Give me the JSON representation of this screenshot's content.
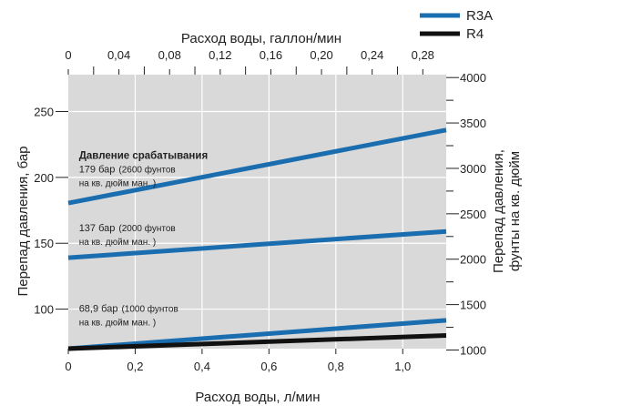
{
  "chart_data": {
    "type": "line",
    "x": [
      0,
      1.13
    ],
    "xlim": [
      0,
      1.13
    ],
    "ylim": [
      70,
      278
    ],
    "xlabel": "Расход воды, л/мин",
    "ylabel": "Перепад давления, бар",
    "x_ticks": [
      0,
      0.2,
      0.4,
      0.6,
      0.8,
      1.0
    ],
    "x_tick_labels": [
      "0",
      "0,2",
      "0,4",
      "0,6",
      "0,8",
      "1,0"
    ],
    "y_ticks": [
      100,
      150,
      200,
      250
    ],
    "y_tick_labels": [
      "100",
      "150",
      "200",
      "250"
    ],
    "top_axis": {
      "label": "Расход воды, галлон/мин",
      "ticks": [
        0,
        0.04,
        0.08,
        0.12,
        0.16,
        0.2,
        0.24,
        0.28
      ],
      "tick_labels": [
        "0",
        "0,04",
        "0,08",
        "0,12",
        "0,16",
        "0,20",
        "0,24",
        "0,28"
      ],
      "minor_ticks": [
        0.02,
        0.06,
        0.1,
        0.14,
        0.18,
        0.22,
        0.26
      ],
      "lim": [
        0,
        0.2985
      ]
    },
    "right_axis": {
      "label_lines": [
        "Перепад давления,",
        "фунты на кв. дюйм"
      ],
      "ticks": [
        1000,
        1500,
        2000,
        2500,
        3000,
        3500,
        4000
      ],
      "tick_labels": [
        "1000",
        "1500",
        "2000",
        "2500",
        "3000",
        "3500",
        "4000"
      ],
      "minor_ticks": [
        1250,
        1750,
        2250,
        2750,
        3250,
        3750
      ],
      "lim": [
        1015,
        4032
      ]
    },
    "grid": true,
    "legend": {
      "placement": "top-right",
      "entries": [
        {
          "name": "R3A",
          "color": "#1a6eb0"
        },
        {
          "name": "R4",
          "color": "#111111"
        }
      ]
    },
    "series": [
      {
        "legend": "R3A",
        "color": "#1a6eb0",
        "values": [
          180.5,
          236
        ]
      },
      {
        "legend": "R3A",
        "color": "#1a6eb0",
        "values": [
          139,
          159
        ]
      },
      {
        "legend": "R3A",
        "color": "#1a6eb0",
        "values": [
          70,
          91.5
        ]
      },
      {
        "legend": "R4",
        "color": "#111111",
        "values": [
          70,
          80
        ]
      }
    ],
    "annotations": [
      {
        "lines": [
          {
            "text": "Давление срабатывания",
            "style": "bold"
          },
          {
            "text": "179 бар",
            "style": "big",
            "suffix": "(2600 фунтов"
          },
          {
            "text": "на кв. дюйм ман. )",
            "style": "small"
          }
        ],
        "x": 0.04,
        "y": 214
      },
      {
        "lines": [
          {
            "text": "137 бар",
            "style": "big",
            "suffix": "(2000 фунтов"
          },
          {
            "text": "на кв. дюйм ман. )",
            "style": "small"
          }
        ],
        "x": 0.04,
        "y": 159
      },
      {
        "lines": [
          {
            "text": "68,9 бар",
            "style": "big",
            "suffix": "(1000 фунтов"
          },
          {
            "text": "на кв. дюйм ман. )",
            "style": "small"
          }
        ],
        "x": 0.04,
        "y": 98
      }
    ]
  }
}
